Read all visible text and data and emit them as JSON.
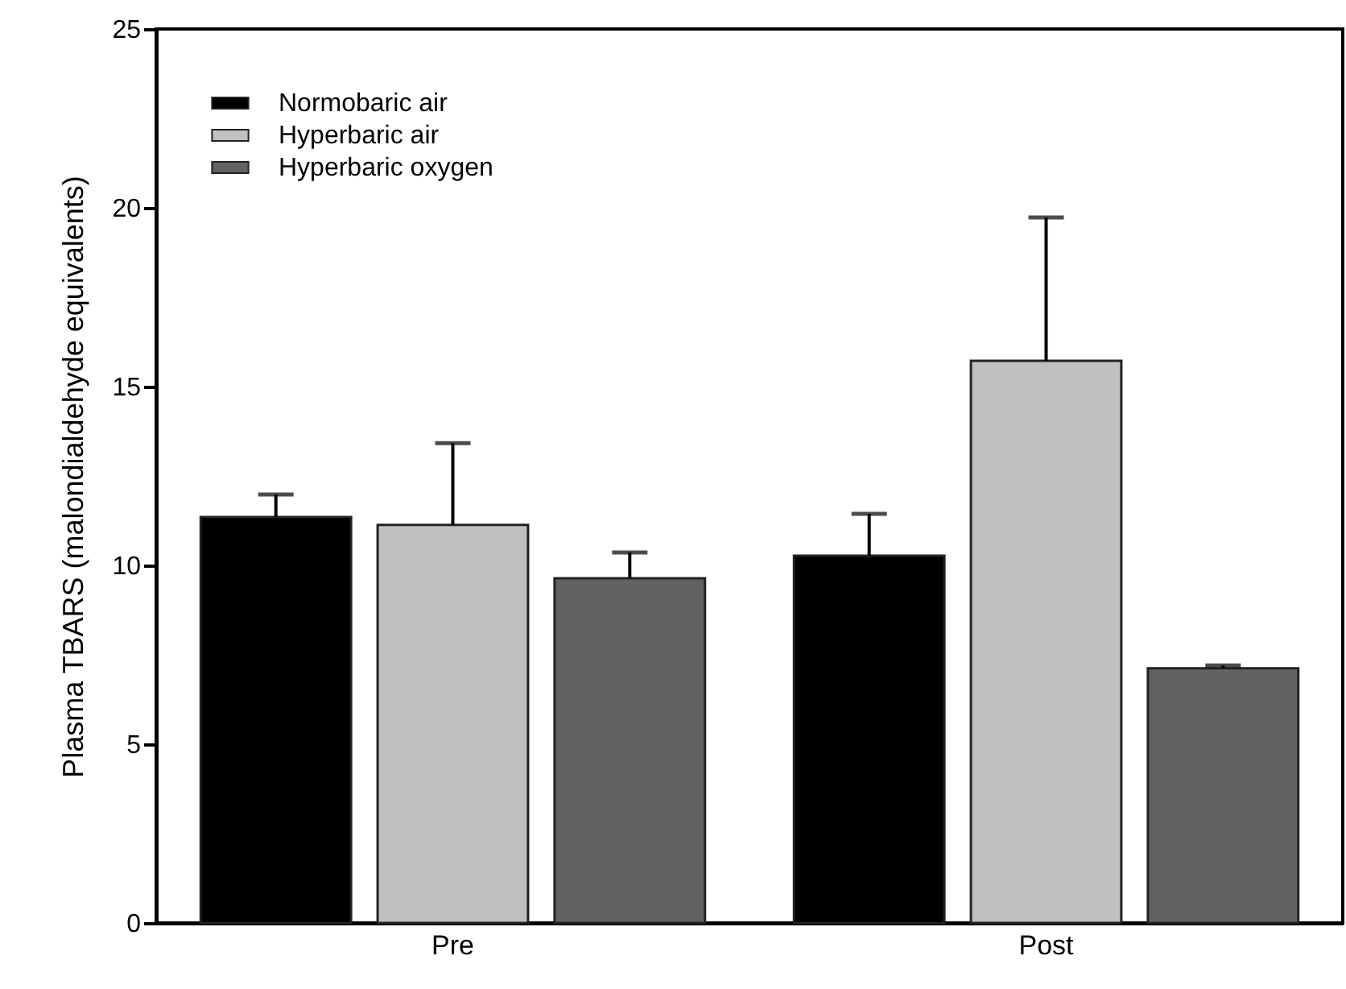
{
  "chart_data": {
    "type": "bar",
    "ylabel": "Plasma TBARS (malondialdehyde equivalents)",
    "categories": [
      "Pre",
      "Post"
    ],
    "series": [
      {
        "name": "Normobaric air",
        "color": "#000000",
        "values": [
          11.35,
          10.27
        ],
        "errors": [
          [
            11.35,
            11.98
          ],
          [
            10.27,
            11.44
          ]
        ]
      },
      {
        "name": "Hyperbaric air",
        "color": "#c0c0c0",
        "values": [
          11.13,
          15.72
        ],
        "errors": [
          [
            11.13,
            13.42
          ],
          [
            15.72,
            19.73
          ]
        ]
      },
      {
        "name": "Hyperbaric oxygen",
        "color": "#626262",
        "values": [
          9.64,
          7.12
        ],
        "errors": [
          [
            9.64,
            10.36
          ],
          [
            7.12,
            7.2
          ]
        ]
      }
    ],
    "ylim": [
      0,
      25
    ],
    "yticks": [
      0,
      5,
      10,
      15,
      20,
      25
    ],
    "grid": false,
    "legend": "top left"
  }
}
